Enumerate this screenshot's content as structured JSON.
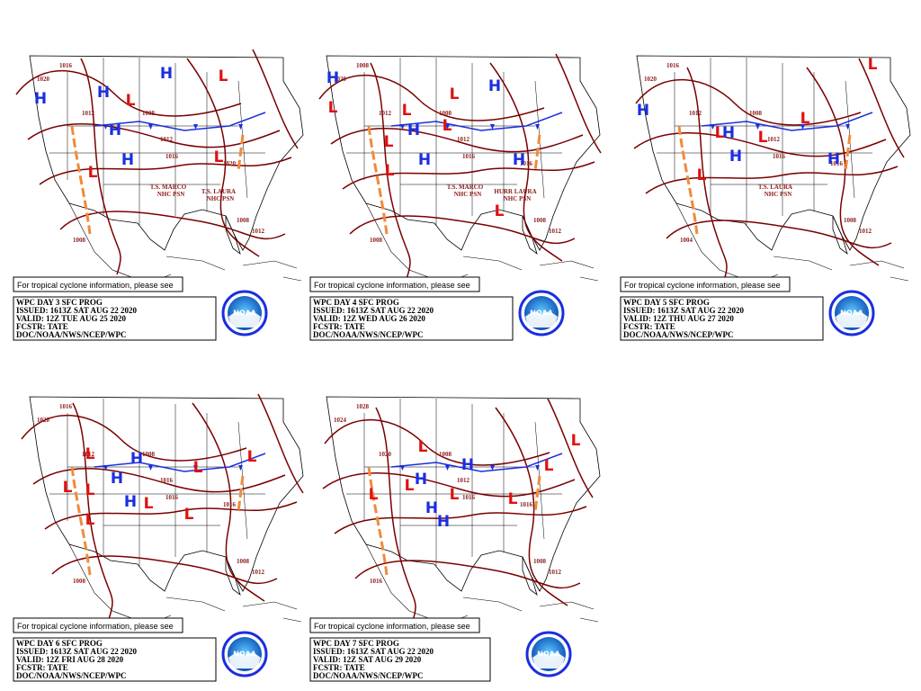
{
  "logo_text": "NOAA",
  "panels": [
    {
      "note": "For tropical cyclone information, please see",
      "title": "WPC DAY 3 SFC PROG",
      "issued": "ISSUED: 1613Z SAT AUG 22 2020",
      "valid": "VALID: 12Z TUE AUG 25 2020",
      "forecaster": "FCSTR: TATE",
      "office": "DOC/NOAA/NWS/NCEP/WPC",
      "storms": [
        "T.S. MARCO",
        "NHC PSN",
        "T.S. LAURA",
        "NHC PSN"
      ],
      "centers": [
        "H",
        "H",
        "H",
        "H",
        "H",
        "L",
        "L",
        "L",
        "L"
      ],
      "isobars": [
        "1016",
        "1020",
        "1012",
        "1008",
        "1012",
        "1016",
        "1020",
        "1008",
        "1012",
        "1008"
      ]
    },
    {
      "note": "For tropical cyclone information, please see",
      "title": "WPC DAY 4 SFC PROG",
      "issued": "ISSUED: 1613Z SAT AUG 22 2020",
      "valid": "VALID: 12Z WED AUG 26 2020",
      "forecaster": "FCSTR: TATE",
      "office": "DOC/NOAA/NWS/NCEP/WPC",
      "storms": [
        "T.S. MARCO",
        "NHC PSN",
        "HURR LAURA",
        "NHC PSN"
      ],
      "centers": [
        "L",
        "L",
        "L",
        "L",
        "L",
        "L",
        "L",
        "H",
        "H",
        "H",
        "H",
        "H"
      ],
      "isobars": [
        "1008",
        "1020",
        "1012",
        "1008",
        "1012",
        "1016",
        "1016",
        "1008",
        "1012",
        "1008"
      ]
    },
    {
      "note": "For tropical cyclone information, please see",
      "title": "WPC DAY 5 SFC PROG",
      "issued": "ISSUED: 1613Z SAT AUG 22 2020",
      "valid": "VALID: 12Z THU AUG 27 2020",
      "forecaster": "FCSTR: TATE",
      "office": "DOC/NOAA/NWS/NCEP/WPC",
      "storms": [
        "T.S. LAURA",
        "NHC PSN"
      ],
      "centers": [
        "H",
        "H",
        "H",
        "H",
        "L",
        "L",
        "L",
        "L",
        "L"
      ],
      "isobars": [
        "1016",
        "1020",
        "1012",
        "1008",
        "1012",
        "1016",
        "1016",
        "1008",
        "1012",
        "1004"
      ]
    },
    {
      "note": "For tropical cyclone information, please see",
      "title": "WPC DAY 6 SFC PROG",
      "issued": "ISSUED: 1613Z SAT AUG 22 2020",
      "valid": "VALID: 12Z FRI AUG 28 2020",
      "forecaster": "FCSTR: TATE",
      "office": "DOC/NOAA/NWS/NCEP/WPC",
      "storms": [],
      "centers": [
        "H",
        "H",
        "H",
        "L",
        "L",
        "L",
        "L",
        "L",
        "L",
        "L",
        "L"
      ],
      "isobars": [
        "1016",
        "1020",
        "1012",
        "1008",
        "1016",
        "1016",
        "1016",
        "1008",
        "1012",
        "1008"
      ]
    },
    {
      "note": "For tropical cyclone information, please see",
      "title": "WPC DAY 7 SFC PROG",
      "issued": "ISSUED: 1613Z SAT AUG 22 2020",
      "valid": "VALID: 12Z SAT AUG 29 2020",
      "forecaster": "FCSTR: TATE",
      "office": "DOC/NOAA/NWS/NCEP/WPC",
      "storms": [],
      "centers": [
        "H",
        "H",
        "H",
        "H",
        "L",
        "L",
        "L",
        "L",
        "L",
        "L",
        "L"
      ],
      "isobars": [
        "1028",
        "1024",
        "1020",
        "1008",
        "1012",
        "1016",
        "1016",
        "1008",
        "1012",
        "1016"
      ]
    }
  ]
}
